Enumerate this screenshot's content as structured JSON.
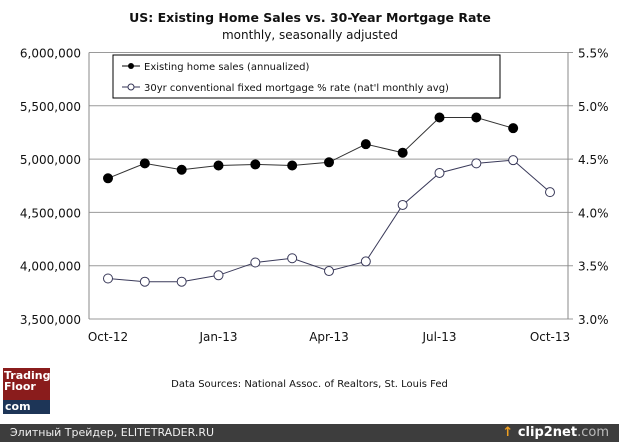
{
  "chart_data": {
    "type": "line",
    "title": "US: Existing Home Sales vs. 30-Year Mortgage Rate",
    "subtitle": "monthly, seasonally adjusted",
    "x": [
      "Oct-12",
      "Nov-12",
      "Dec-12",
      "Jan-13",
      "Feb-13",
      "Mar-13",
      "Apr-13",
      "May-13",
      "Jun-13",
      "Jul-13",
      "Aug-13",
      "Sep-13",
      "Oct-13"
    ],
    "x_tick_labels": [
      "Oct-12",
      "Jan-13",
      "Apr-13",
      "Jul-13",
      "Oct-13"
    ],
    "y_left": {
      "range": [
        3500000,
        6000000
      ],
      "ticks": [
        "3,500,000",
        "4,000,000",
        "4,500,000",
        "5,000,000",
        "5,500,000",
        "6,000,000"
      ]
    },
    "y_right": {
      "range": [
        3.0,
        5.5
      ],
      "ticks": [
        "3.0%",
        "3.5%",
        "4.0%",
        "4.5%",
        "5.0%",
        "5.5%"
      ]
    },
    "grid": true,
    "legend_placement": "top",
    "series": [
      {
        "name": "Existing home sales (annualized)",
        "axis": "left",
        "marker": "filled",
        "values": [
          4820000,
          4960000,
          4900000,
          4940000,
          4950000,
          4940000,
          4970000,
          5140000,
          5060000,
          5390000,
          5390000,
          5290000,
          null
        ]
      },
      {
        "name": "30yr conventional fixed mortgage % rate (nat'l monthly avg)",
        "axis": "right",
        "marker": "open",
        "values": [
          3.38,
          3.35,
          3.35,
          3.41,
          3.53,
          3.57,
          3.45,
          3.54,
          4.07,
          4.37,
          4.46,
          4.49,
          4.19
        ]
      }
    ],
    "source": "Data Sources: National Assoc. of Realtors, St. Louis Fed"
  },
  "logo": {
    "line1": "Trading",
    "line2": "Floor",
    "line3": "com"
  },
  "footer": {
    "left": "Элитный Трейдер, ELITETRADER.RU",
    "right_brand": "clip2net",
    "right_suffix": ".com"
  }
}
